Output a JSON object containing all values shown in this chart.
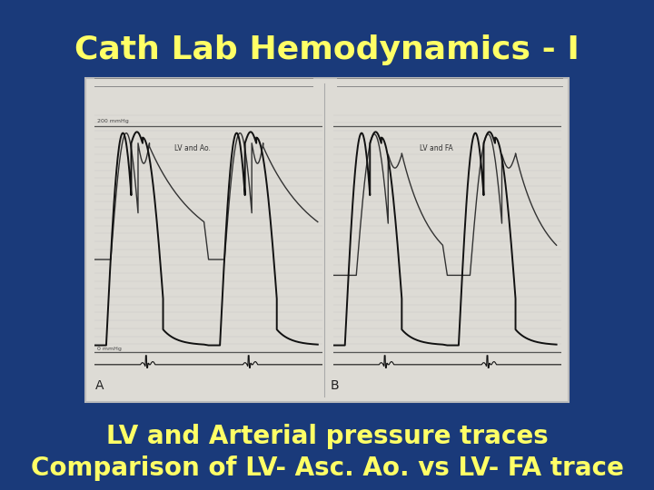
{
  "title": "Cath Lab Hemodynamics - I",
  "subtitle_line1": "LV and Arterial pressure traces",
  "subtitle_line2": "Comparison of LV- Asc. Ao. vs LV- FA trace",
  "bg_color": "#1a3a7a",
  "title_color": "#ffff66",
  "subtitle_color": "#ffff66",
  "title_fontsize": 26,
  "subtitle_fontsize": 20,
  "panel_bg": "#f0ede8",
  "grid_color": "#aaaaaa",
  "trace_color": "#111111",
  "label_A": "A",
  "label_B": "B",
  "label_LV_Ao": "LV and Ao.",
  "label_LV_FA": "LV and FA",
  "mmhg_200": "200 mmHg",
  "mmhg_0": "0 mmHg"
}
